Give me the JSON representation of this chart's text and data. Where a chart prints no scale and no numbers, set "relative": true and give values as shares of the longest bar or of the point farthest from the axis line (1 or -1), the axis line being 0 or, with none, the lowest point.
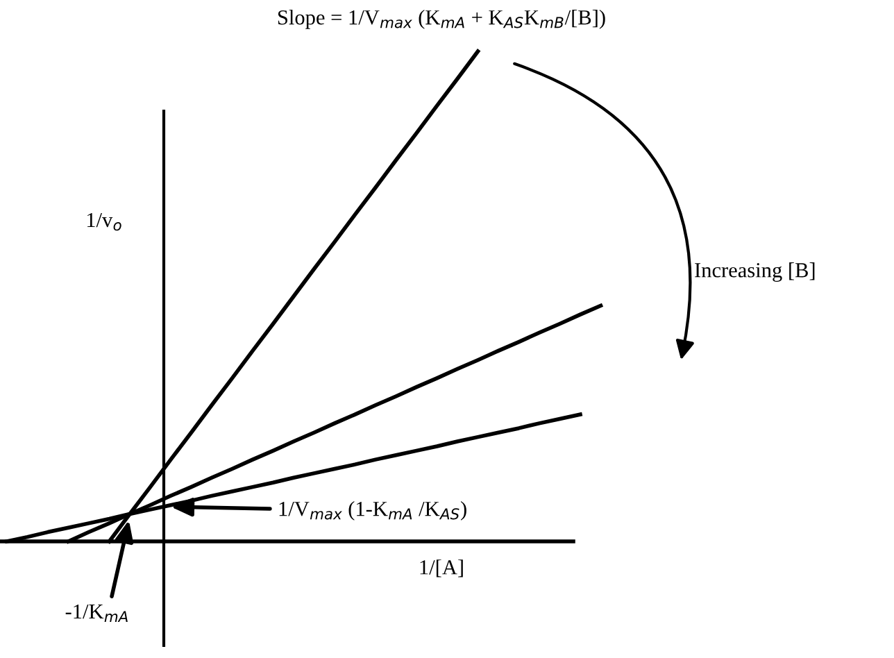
{
  "chart_data": {
    "type": "line",
    "relative": true,
    "xlabel": "1/[A]",
    "ylabel": "1/v$_{o}$",
    "categories": [
      null,
      null,
      null,
      null,
      null,
      null,
      null,
      null,
      null,
      null,
      null,
      null,
      null,
      null,
      null,
      null,
      null,
      null,
      null,
      null,
      null,
      null,
      null,
      null,
      null,
      null,
      null,
      null,
      null,
      null
    ],
    "series": [
      {
        "color": "#000000",
        "values": [
          null,
          null,
          null,
          null,
          null,
          0,
          0.056,
          0.111,
          0.167,
          0.222,
          0.278,
          0.333,
          0.389,
          0.444,
          0.5,
          0.556,
          0.611,
          0.667,
          0.722,
          0.778,
          0.833,
          0.889,
          0.944,
          1,
          null,
          null,
          null,
          null,
          null,
          null
        ]
      },
      {
        "color": "#000000",
        "values": [
          null,
          null,
          null,
          0,
          0.019,
          0.037,
          0.056,
          0.074,
          0.093,
          0.111,
          0.13,
          0.148,
          0.167,
          0.185,
          0.204,
          0.222,
          0.241,
          0.259,
          0.278,
          0.296,
          0.315,
          0.333,
          0.352,
          0.37,
          0.389,
          0.407,
          0.426,
          0.444,
          0.463,
          0.481
        ]
      },
      {
        "color": "#000000",
        "values": [
          0,
          0.009,
          0.019,
          0.028,
          0.037,
          0.046,
          0.056,
          0.065,
          0.074,
          0.083,
          0.093,
          0.102,
          0.111,
          0.12,
          0.13,
          0.139,
          0.148,
          0.157,
          0.167,
          0.176,
          0.185,
          0.194,
          0.204,
          0.213,
          0.222,
          0.231,
          0.241,
          0.25,
          0.259,
          null
        ]
      }
    ],
    "annotations": [
      "Slope = 1/V$_{max}$ (K$_{mA}$ + K$_{AS}$K$_{mB}$/[B])",
      "Increasing [B]",
      "1/V$_{max}$ (1-K$_{mA}$ /K$_{AS}$)",
      "-1/K$_{mA}$"
    ]
  }
}
